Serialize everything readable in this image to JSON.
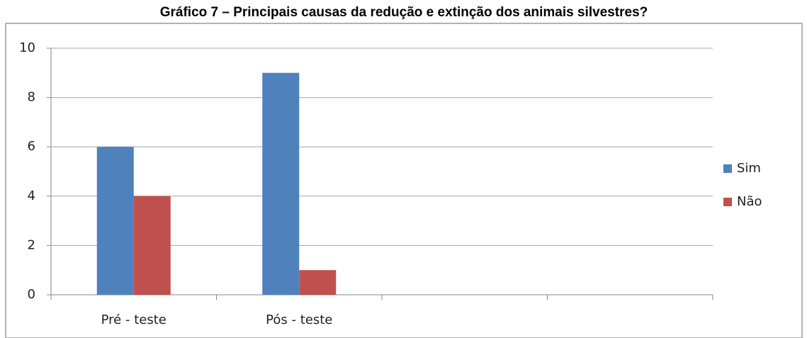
{
  "chart_data": {
    "type": "bar",
    "title": "Gráfico 7 – Principais causas da redução e extinção dos animais silvestres?",
    "categories": [
      "Pré - teste",
      "Pós - teste",
      null,
      null
    ],
    "series": [
      {
        "name": "Sim",
        "color": "#4f81bd",
        "values": [
          6,
          9,
          null,
          null
        ]
      },
      {
        "name": "Não",
        "color": "#c0504d",
        "values": [
          4,
          1,
          null,
          null
        ]
      }
    ],
    "ylim": [
      0,
      10
    ],
    "yticks": [
      0,
      2,
      4,
      6,
      8,
      10
    ],
    "grid": true,
    "legend": "right"
  }
}
